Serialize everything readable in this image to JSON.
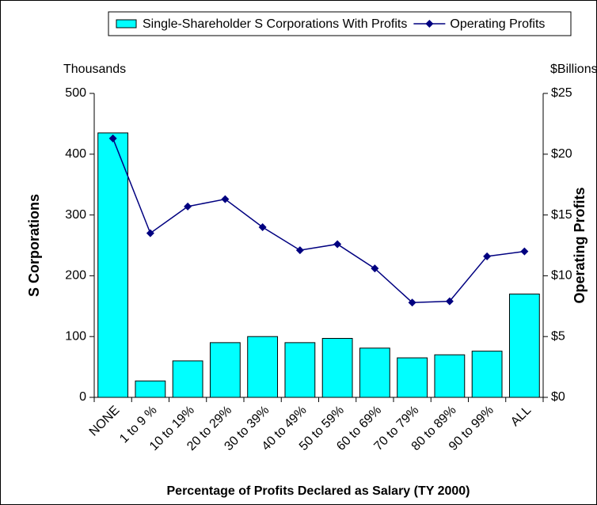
{
  "chart_data": {
    "type": "bar-line",
    "x_label": "Percentage of Profits Declared as Salary (TY 2000)",
    "y_label": "S Corporations",
    "y2_label": "Operating Profits",
    "y_unit": "Thousands",
    "y2_unit": "$Billions",
    "categories": [
      "NONE",
      "1 to 9 %",
      "10 to 19%",
      "20 to 29%",
      "30 to 39%",
      "40 to 49%",
      "50 to 59%",
      "60 to 69%",
      "70 to 79%",
      "80 to 89%",
      "90 to 99%",
      "ALL"
    ],
    "series": [
      {
        "name": "Single-Shareholder S Corporations With Profits",
        "type": "bar",
        "color": "#00ffff",
        "values": [
          435,
          27,
          60,
          90,
          100,
          90,
          97,
          81,
          65,
          70,
          76,
          170
        ]
      },
      {
        "name": "Operating Profits",
        "type": "line",
        "axis": "y2",
        "color": "#000080",
        "values": [
          21.3,
          13.5,
          15.7,
          16.3,
          14.0,
          12.1,
          12.6,
          10.6,
          7.8,
          7.9,
          11.6,
          12.0
        ]
      }
    ],
    "ylim": [
      0,
      500
    ],
    "yticks": [
      0,
      100,
      200,
      300,
      400,
      500
    ],
    "y2lim": [
      0,
      25
    ],
    "y2ticks": [
      {
        "value": 0,
        "label": "$0"
      },
      {
        "value": 5,
        "label": "$5"
      },
      {
        "value": 10,
        "label": "$10"
      },
      {
        "value": 15,
        "label": "$15"
      },
      {
        "value": 20,
        "label": "$20"
      },
      {
        "value": 25,
        "label": "$25"
      }
    ],
    "legend": "top"
  }
}
